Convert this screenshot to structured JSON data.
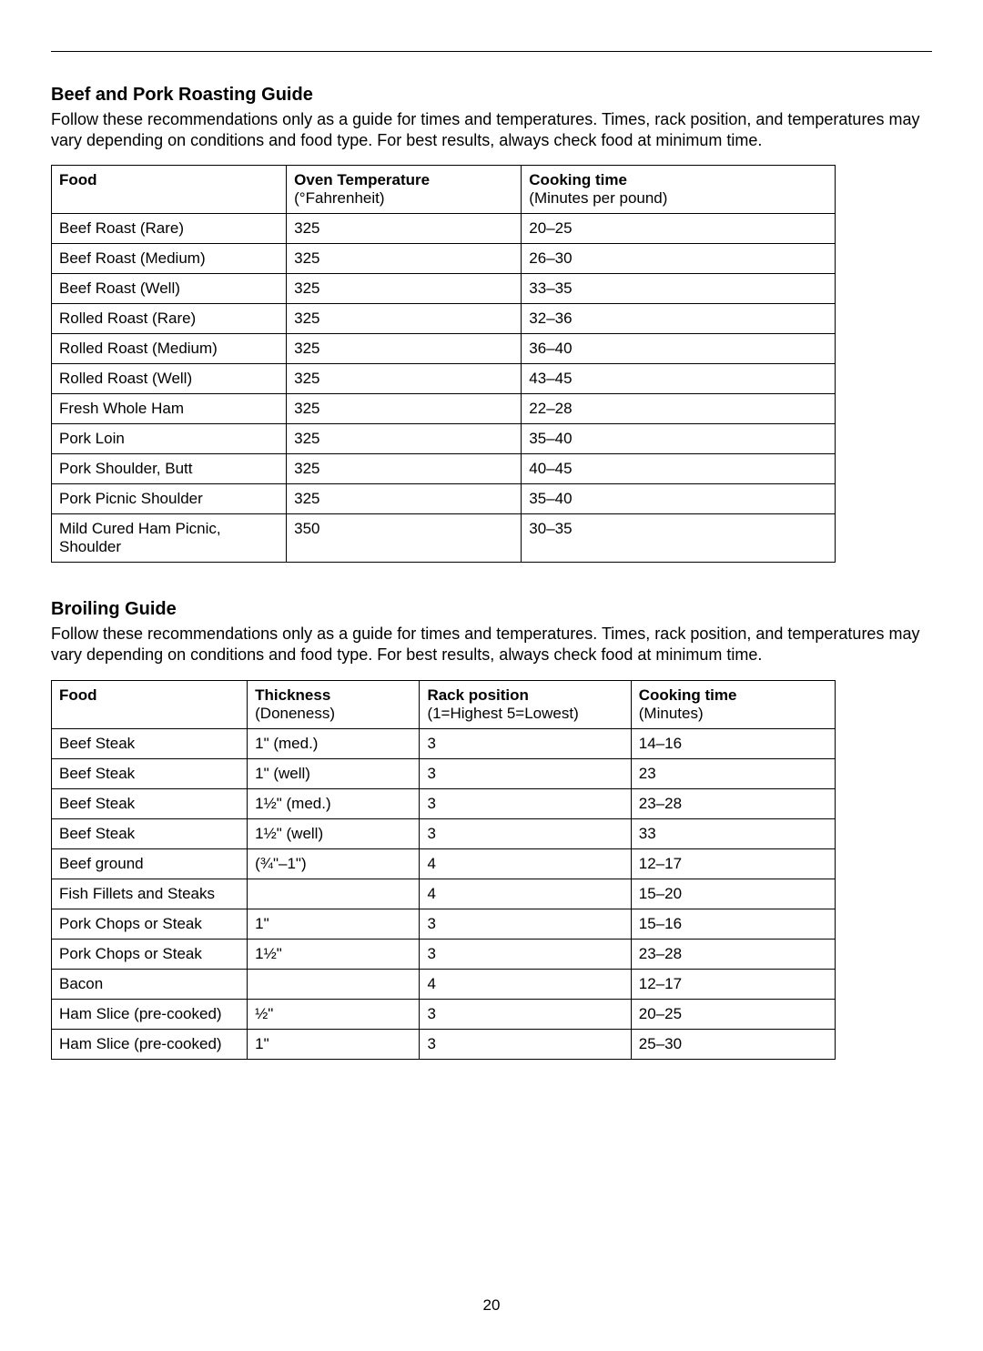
{
  "page_number": "20",
  "section1": {
    "title": "Beef and Pork Roasting Guide",
    "description": "Follow these recommendations only as a guide for times and temperatures. Times, rack position, and temperatures may vary depending on conditions and food type. For best results, always check food at minimum time.",
    "table": {
      "type": "table",
      "background_color": "#ffffff",
      "border_color": "#000000",
      "font_size": 17,
      "columns": [
        {
          "header_bold": "Food",
          "header_sub": "",
          "width_pct": 30,
          "align": "left"
        },
        {
          "header_bold": "Oven Temperature",
          "header_sub": "(°Fahrenheit)",
          "width_pct": 30,
          "align": "left"
        },
        {
          "header_bold": "Cooking time",
          "header_sub": "(Minutes per pound)",
          "width_pct": 40,
          "align": "left"
        }
      ],
      "rows": [
        [
          "Beef Roast (Rare)",
          "325",
          "20–25"
        ],
        [
          "Beef Roast (Medium)",
          "325",
          "26–30"
        ],
        [
          "Beef Roast (Well)",
          "325",
          "33–35"
        ],
        [
          "Rolled Roast (Rare)",
          "325",
          "32–36"
        ],
        [
          "Rolled Roast (Medium)",
          "325",
          "36–40"
        ],
        [
          "Rolled Roast (Well)",
          "325",
          "43–45"
        ],
        [
          "Fresh Whole Ham",
          "325",
          "22–28"
        ],
        [
          "Pork Loin",
          "325",
          "35–40"
        ],
        [
          "Pork Shoulder, Butt",
          "325",
          "40–45"
        ],
        [
          "Pork Picnic Shoulder",
          "325",
          "35–40"
        ],
        [
          "Mild Cured Ham Picnic, Shoulder",
          "350",
          "30–35"
        ]
      ]
    }
  },
  "section2": {
    "title": "Broiling Guide",
    "description": "Follow these recommendations only as a guide for times and temperatures. Times, rack position, and temperatures may vary depending on conditions and food type. For best results, always check food at minimum time.",
    "table": {
      "type": "table",
      "background_color": "#ffffff",
      "border_color": "#000000",
      "font_size": 17,
      "columns": [
        {
          "header_bold": "Food",
          "header_sub": "",
          "width_pct": 25,
          "align": "left"
        },
        {
          "header_bold": "Thickness",
          "header_sub": "(Doneness)",
          "width_pct": 22,
          "align": "left"
        },
        {
          "header_bold": "Rack position",
          "header_sub": "(1=Highest 5=Lowest)",
          "width_pct": 27,
          "align": "left"
        },
        {
          "header_bold": "Cooking time",
          "header_sub": "(Minutes)",
          "width_pct": 26,
          "align": "left"
        }
      ],
      "rows": [
        [
          "Beef Steak",
          "1\" (med.)",
          "3",
          "14–16"
        ],
        [
          "Beef Steak",
          "1\" (well)",
          "3",
          "23"
        ],
        [
          "Beef Steak",
          "1½\" (med.)",
          "3",
          "23–28"
        ],
        [
          "Beef Steak",
          "1½\" (well)",
          "3",
          "33"
        ],
        [
          "Beef ground",
          "(¾\"–1\")",
          "4",
          "12–17"
        ],
        [
          "Fish Fillets and Steaks",
          "",
          "4",
          "15–20"
        ],
        [
          "Pork Chops or Steak",
          "1\"",
          "3",
          "15–16"
        ],
        [
          "Pork Chops or Steak",
          "1½\"",
          "3",
          "23–28"
        ],
        [
          "Bacon",
          "",
          "4",
          "12–17"
        ],
        [
          "Ham Slice (pre-cooked)",
          "½\"",
          "3",
          "20–25"
        ],
        [
          "Ham Slice (pre-cooked)",
          "1\"",
          "3",
          "25–30"
        ]
      ]
    }
  }
}
